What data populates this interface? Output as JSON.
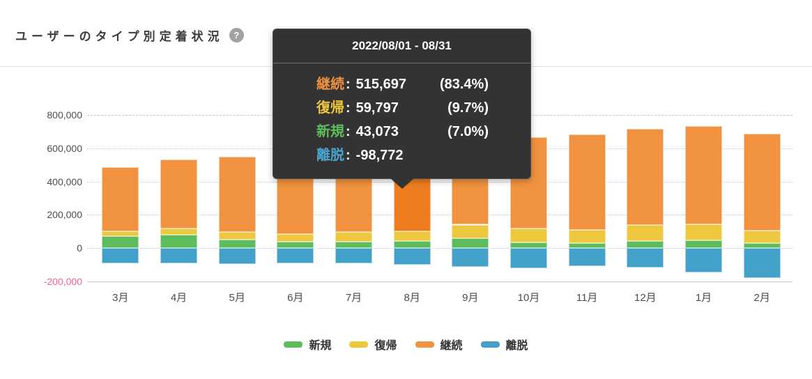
{
  "header": {
    "title": "ユーザーのタイプ別定着状況",
    "help_icon": "?"
  },
  "chart_data": {
    "type": "bar",
    "stacked": true,
    "title": "ユーザーのタイプ別定着状況",
    "categories": [
      "3月",
      "4月",
      "5月",
      "6月",
      "7月",
      "8月",
      "9月",
      "10月",
      "11月",
      "12月",
      "1月",
      "2月"
    ],
    "series": [
      {
        "name": "新規",
        "color": "#5dbd5d",
        "values": [
          72000,
          79000,
          50000,
          37000,
          39000,
          43073,
          61000,
          34000,
          29000,
          41000,
          46000,
          30000
        ]
      },
      {
        "name": "復帰",
        "color": "#edc73e",
        "values": [
          28000,
          38000,
          46000,
          49000,
          59000,
          59797,
          80000,
          83000,
          80000,
          97000,
          96000,
          77000
        ]
      },
      {
        "name": "継続",
        "color": "#f0923f",
        "highlight_color": "#ed7d1f",
        "values": [
          386000,
          415000,
          451000,
          474000,
          487000,
          515697,
          499000,
          551000,
          573000,
          579000,
          592000,
          578000
        ]
      },
      {
        "name": "離脱",
        "color": "#42a0c9",
        "values": [
          -93000,
          -93000,
          -97000,
          -93000,
          -93000,
          -98772,
          -112000,
          -119000,
          -107000,
          -118000,
          -146000,
          -178000
        ]
      }
    ],
    "highlighted_index": 5,
    "ylim": [
      -200000,
      800000
    ],
    "y_ticks": [
      {
        "label": "800,000",
        "value": 800000,
        "color": "#4d4d4d",
        "style": "dashed"
      },
      {
        "label": "600,000",
        "value": 600000,
        "color": "#4d4d4d",
        "style": "dotted"
      },
      {
        "label": "400,000",
        "value": 400000,
        "color": "#4d4d4d",
        "style": "dotted"
      },
      {
        "label": "200,000",
        "value": 200000,
        "color": "#4d4d4d",
        "style": "dotted"
      },
      {
        "label": "0",
        "value": 0,
        "color": "#4d4d4d",
        "style": "dotted"
      },
      {
        "label": "-200,000",
        "value": -200000,
        "color": "#fa5f8c",
        "style": "solid"
      }
    ],
    "grid": true,
    "legend_position": "bottom"
  },
  "tooltip": {
    "title": "2022/08/01 - 08/31",
    "rows": [
      {
        "label": "継続",
        "color": "#f0923f",
        "value": "515,697",
        "percent": "(83.4%)"
      },
      {
        "label": "復帰",
        "color": "#edc73e",
        "value": "59,797",
        "percent": "(9.7%)"
      },
      {
        "label": "新規",
        "color": "#5dbd5d",
        "value": "43,073",
        "percent": "(7.0%)"
      },
      {
        "label": "離脱",
        "color": "#4aa3cd",
        "value": "-98,772",
        "percent": ""
      }
    ]
  },
  "legend": {
    "items": [
      {
        "label": "新規",
        "color": "#5dbd5d"
      },
      {
        "label": "復帰",
        "color": "#edc73e"
      },
      {
        "label": "継続",
        "color": "#f0923f"
      },
      {
        "label": "離脱",
        "color": "#42a0c9"
      }
    ]
  }
}
